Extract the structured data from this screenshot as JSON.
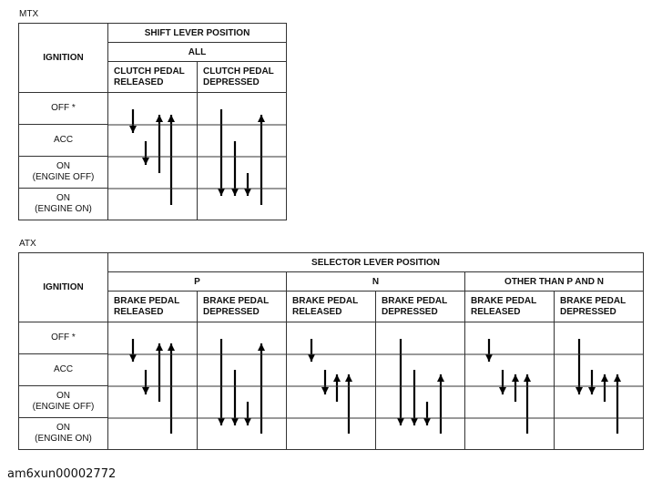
{
  "mtx": {
    "title": "MTX",
    "header_ignition": "IGNITION",
    "header_position": "SHIFT LEVER POSITION",
    "header_all": "ALL",
    "col1": [
      "CLUTCH PEDAL",
      "RELEASED"
    ],
    "col2": [
      "CLUTCH PEDAL",
      "DEPRESSED"
    ],
    "rows": [
      [
        "OFF *"
      ],
      [
        "ACC"
      ],
      [
        "ON",
        "(ENGINE OFF)"
      ],
      [
        "ON",
        "(ENGINE ON)"
      ]
    ]
  },
  "atx": {
    "title": "ATX",
    "header_ignition": "IGNITION",
    "header_position": "SELECTOR LEVER POSITION",
    "groups": [
      "P",
      "N",
      "OTHER THAN P AND N"
    ],
    "col_released": [
      "BRAKE PEDAL",
      "RELEASED"
    ],
    "col_depressed": [
      "BRAKE PEDAL",
      "DEPRESSED"
    ],
    "rows": [
      [
        "OFF *"
      ],
      [
        "ACC"
      ],
      [
        "ON",
        "(ENGINE OFF)"
      ],
      [
        "ON",
        "(ENGINE ON)"
      ]
    ]
  },
  "caption": "am6xun00002772",
  "colors": {
    "line": "#333333",
    "arrow": "#000000"
  }
}
